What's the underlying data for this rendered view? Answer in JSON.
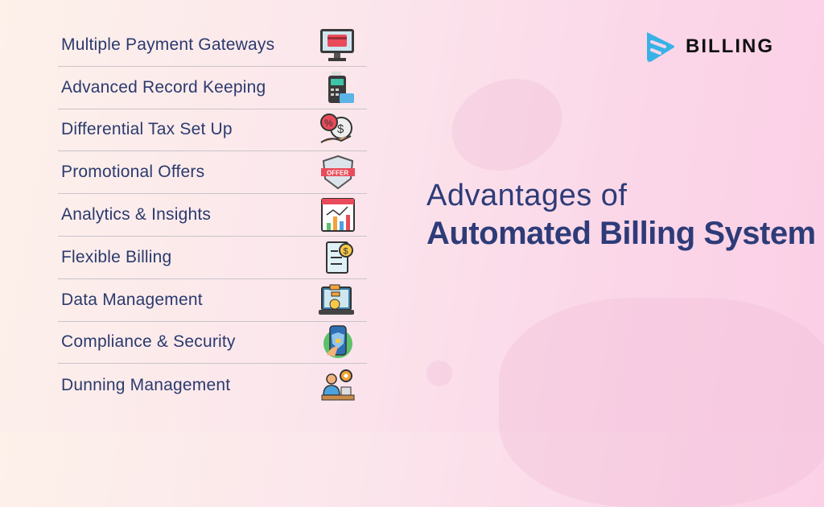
{
  "logo": {
    "text": "BILLING",
    "color": "#38b2e6"
  },
  "heading": {
    "line1": "Advantages of",
    "line2": "Automated Billing System"
  },
  "features": [
    {
      "label": "Multiple Payment Gateways",
      "icon": "monitor-card-icon"
    },
    {
      "label": "Advanced Record Keeping",
      "icon": "pos-terminal-icon"
    },
    {
      "label": "Differential Tax Set Up",
      "icon": "money-bag-hand-icon"
    },
    {
      "label": "Promotional Offers",
      "icon": "offer-badge-icon",
      "icon_text": "OFFER"
    },
    {
      "label": "Analytics & Insights",
      "icon": "analytics-chart-icon"
    },
    {
      "label": "Flexible Billing",
      "icon": "invoice-dollar-icon"
    },
    {
      "label": "Data Management",
      "icon": "laptop-flowchart-icon"
    },
    {
      "label": "Compliance & Security",
      "icon": "phone-shield-icon"
    },
    {
      "label": "Dunning Management",
      "icon": "person-gear-icon"
    }
  ],
  "colors": {
    "text": "#2b3a6e",
    "heading": "#2d3c78"
  }
}
